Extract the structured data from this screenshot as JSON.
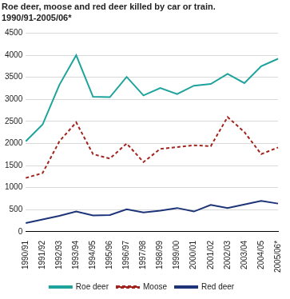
{
  "chart_data": {
    "type": "line",
    "title": [
      "Roe deer, moose and red deer killed by car or train.",
      "1990/91-2005/06*"
    ],
    "categories": [
      "1990/91",
      "1991/92",
      "1992/93",
      "1993/94",
      "1994/95",
      "1995/96",
      "1996/97",
      "1997/98",
      "1998/99",
      "1999/00",
      "2000/01",
      "2001/02",
      "2002/03",
      "2003/04",
      "2004/05",
      "2005/06*"
    ],
    "series": [
      {
        "name": "Roe deer",
        "color": "#1ea39c",
        "line_style": "solid",
        "values": [
          2050,
          2430,
          3330,
          4000,
          3060,
          3050,
          3510,
          3090,
          3260,
          3120,
          3310,
          3350,
          3580,
          3370,
          3750,
          3920
        ]
      },
      {
        "name": "Moose",
        "color": "#a3231d",
        "line_style": "dashed",
        "values": [
          1220,
          1330,
          2050,
          2480,
          1760,
          1660,
          2000,
          1580,
          1880,
          1920,
          1960,
          1940,
          2600,
          2260,
          1760,
          1910
        ]
      },
      {
        "name": "Red deer",
        "color": "#1d3479",
        "line_style": "solid",
        "values": [
          200,
          280,
          360,
          460,
          370,
          380,
          510,
          440,
          480,
          540,
          460,
          610,
          540,
          620,
          700,
          640
        ]
      }
    ],
    "ylim": [
      0,
      4500
    ],
    "yticks": [
      0,
      500,
      1000,
      1500,
      2000,
      2500,
      3000,
      3500,
      4000,
      4500
    ],
    "grid": true,
    "legend": "bottom"
  }
}
